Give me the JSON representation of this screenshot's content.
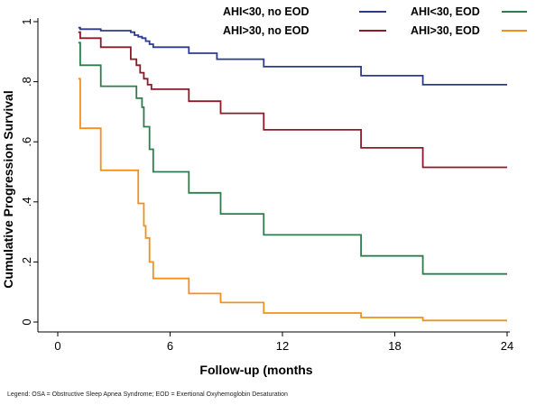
{
  "chart_data": {
    "type": "line",
    "step": true,
    "xlabel": "Follow-up (months",
    "ylabel": "Cumulative Progression Survival",
    "xlim": [
      0,
      24
    ],
    "ylim": [
      0,
      1
    ],
    "x_ticks": [
      0,
      6,
      12,
      18,
      24
    ],
    "x_tick_labels": [
      "0",
      "6",
      "12",
      "18",
      "24"
    ],
    "y_ticks": [
      0,
      0.2,
      0.4,
      0.6,
      0.8,
      1
    ],
    "y_tick_labels": [
      "0",
      ".2",
      ".4",
      ".6",
      ".8",
      "1"
    ],
    "grid": false,
    "legend_position": "top",
    "series": [
      {
        "name": "AHI<30, no EOD",
        "color": "#2e3b8c",
        "x": [
          1.1,
          1.2,
          2.3,
          3.9,
          4.1,
          4.3,
          4.5,
          4.7,
          4.9,
          5.1,
          7.0,
          8.5,
          11.0,
          16.2,
          19.5,
          24
        ],
        "y": [
          0.98,
          0.975,
          0.97,
          0.965,
          0.955,
          0.95,
          0.945,
          0.935,
          0.925,
          0.915,
          0.895,
          0.875,
          0.85,
          0.82,
          0.79,
          0.79
        ]
      },
      {
        "name": "AHI<30, EOD",
        "color": "#2e7d4f",
        "x": [
          1.1,
          1.2,
          2.3,
          4.2,
          4.5,
          4.6,
          4.9,
          5.1,
          7.0,
          8.7,
          11.0,
          16.2,
          19.5,
          24
        ],
        "y": [
          0.93,
          0.855,
          0.785,
          0.745,
          0.715,
          0.65,
          0.575,
          0.5,
          0.43,
          0.36,
          0.29,
          0.22,
          0.16,
          0.16
        ]
      },
      {
        "name": "AHI>30, no EOD",
        "color": "#8b1a2b",
        "x": [
          1.1,
          1.2,
          2.3,
          3.9,
          4.2,
          4.4,
          4.6,
          4.8,
          5.0,
          7.0,
          8.7,
          11.0,
          16.2,
          19.5,
          24
        ],
        "y": [
          0.965,
          0.945,
          0.915,
          0.875,
          0.855,
          0.83,
          0.81,
          0.79,
          0.775,
          0.735,
          0.695,
          0.64,
          0.58,
          0.515,
          0.515
        ]
      },
      {
        "name": "AHI>30, EOD",
        "color": "#f0901e",
        "x": [
          1.1,
          1.2,
          2.3,
          4.3,
          4.6,
          4.7,
          4.9,
          5.1,
          7.0,
          8.7,
          11.0,
          16.2,
          19.5,
          24
        ],
        "y": [
          0.81,
          0.645,
          0.505,
          0.395,
          0.32,
          0.28,
          0.2,
          0.145,
          0.095,
          0.065,
          0.03,
          0.015,
          0.005,
          0.005
        ]
      }
    ],
    "legend_order": [
      0,
      1,
      2,
      3
    ]
  },
  "footnote": "Legend: OSA = Obstructive Sleep Apnea Syndrome; EOD = Exertional Oxyhemoglobin Desaturation"
}
